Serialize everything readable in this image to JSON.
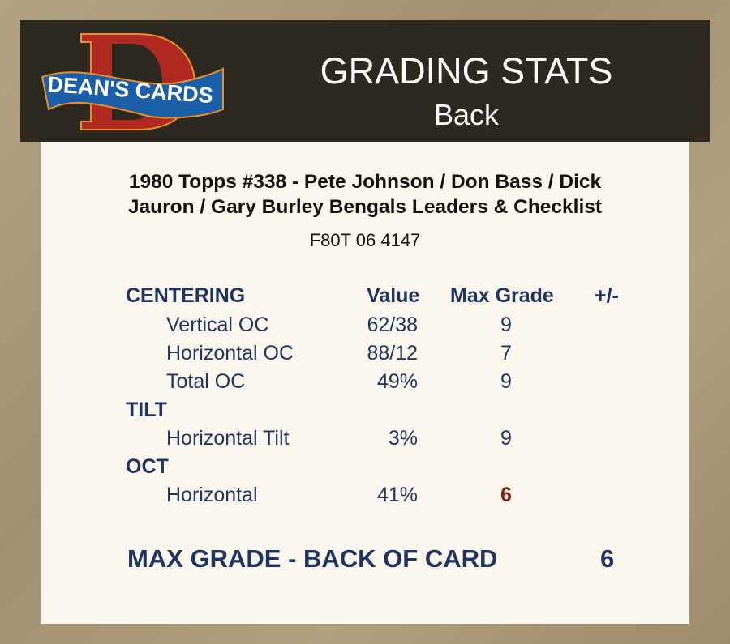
{
  "header": {
    "logo_text": "DEAN'S CARDS",
    "title": "GRADING STATS",
    "subtitle": "Back"
  },
  "card": {
    "title": "1980 Topps #338  -  Pete Johnson / Don Bass / Dick Jauron / Gary Burley Bengals Leaders & Checklist",
    "code": "F80T 06 4147"
  },
  "table": {
    "columns": {
      "value": "Value",
      "max_grade": "Max Grade",
      "plus_minus": "+/-"
    },
    "sections": [
      {
        "name": "CENTERING",
        "rows": [
          {
            "label": "Vertical OC",
            "value": "62/38",
            "max_grade": "9"
          },
          {
            "label": "Horizontal OC",
            "value": "88/12",
            "max_grade": "7"
          },
          {
            "label": "Total OC",
            "value": "49%",
            "max_grade": "9"
          }
        ]
      },
      {
        "name": "TILT",
        "rows": [
          {
            "label": "Horizontal Tilt",
            "value": "3%",
            "max_grade": "9"
          }
        ]
      },
      {
        "name": "OCT",
        "rows": [
          {
            "label": "Horizontal",
            "value": "41%",
            "max_grade": "6",
            "highlight": true
          }
        ]
      }
    ]
  },
  "summary": {
    "label": "MAX GRADE - BACK OF CARD",
    "value": "6"
  },
  "colors": {
    "text": "#1f3561",
    "highlight": "#8c1a14",
    "header_bg": "#2e2920",
    "panel_bg": "#fcf7ee"
  }
}
